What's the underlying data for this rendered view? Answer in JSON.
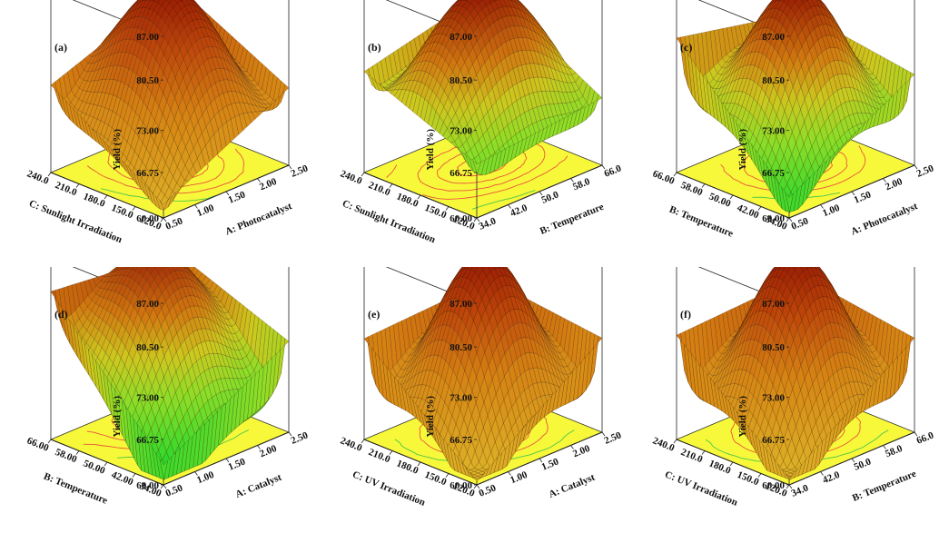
{
  "chart_data": [
    {
      "type": "surface",
      "panel_label": "(a)",
      "zlabel": "Yield  (%)",
      "zticks": [
        "60.00",
        "66.75",
        "73.00",
        "80.50",
        "87.00"
      ],
      "zlim": [
        60,
        87
      ],
      "xlabel": "A: Photocatalyst",
      "xticks": [
        "0.50",
        "1.00",
        "1.50",
        "2.00",
        "2.50"
      ],
      "ylabel": "C: Sunlight Irradiation",
      "yticks": [
        "120.0",
        "150.0",
        "180.0",
        "210.0",
        "240.0"
      ],
      "surface": {
        "peak": 86.5,
        "x_opt": 0.55,
        "y_opt": 0.6,
        "curv_x": 22,
        "curv_y": 10,
        "cross": 0,
        "colormap": "orange"
      },
      "corner_values": {
        "x0y0": 62.0,
        "x1y0": 71.5,
        "x0y1": 73.0,
        "x1y1": 80.0
      }
    },
    {
      "type": "surface",
      "panel_label": "(b)",
      "zlabel": "Yield  (%)",
      "zticks": [
        "60.00",
        "66.75",
        "73.00",
        "80.50",
        "87.00"
      ],
      "zlim": [
        60,
        87
      ],
      "xlabel": "B: Temperature",
      "xticks": [
        "34.0",
        "42.0",
        "50.0",
        "58.0",
        "66.0"
      ],
      "ylabel": "C: Sunlight Irradiation",
      "yticks": [
        "120.0",
        "150.0",
        "180.0",
        "210.0",
        "240.0"
      ],
      "surface": {
        "peak": 86.5,
        "x_opt": 0.55,
        "y_opt": 0.55,
        "curv_x": 8,
        "curv_y": 22,
        "cross": 0,
        "colormap": "green-red"
      },
      "corner_values": {
        "x0y0": 68.0,
        "x1y0": 70.0,
        "x0y1": 75.0,
        "x1y1": 79.5
      }
    },
    {
      "type": "surface",
      "panel_label": "(c)",
      "zlabel": "Yield  (%)",
      "zticks": [
        "60.00",
        "66.75",
        "73.00",
        "80.50",
        "87.00"
      ],
      "zlim": [
        60,
        87
      ],
      "xlabel": "A: Photocatalyst",
      "xticks": [
        "0.50",
        "1.00",
        "1.50",
        "2.00",
        "2.50"
      ],
      "ylabel": "B: Temperature",
      "yticks": [
        "34.00",
        "42.00",
        "50.00",
        "58.00",
        "66.00"
      ],
      "surface": {
        "peak": 86.5,
        "x_opt": 0.55,
        "y_opt": 0.55,
        "curv_x": 22,
        "curv_y": 20,
        "cross": 0,
        "colormap": "green-red"
      },
      "corner_values": {
        "x0y0": 63.0,
        "x1y0": 73.5,
        "x0y1": 80.0,
        "x1y1": 76.0
      }
    },
    {
      "type": "surface",
      "panel_label": "(d)",
      "zlabel": "Yield  (%)",
      "zticks": [
        "60.00",
        "66.75",
        "73.00",
        "80.50",
        "87.00"
      ],
      "zlim": [
        60,
        87
      ],
      "xlabel": "A: Catalyst",
      "xticks": [
        "0.50",
        "1.00",
        "1.50",
        "2.00",
        "2.50"
      ],
      "ylabel": "B: Temperature",
      "yticks": [
        "34.00",
        "42.00",
        "50.00",
        "58.00",
        "66.00"
      ],
      "surface": {
        "peak": 86.5,
        "x_opt": 0.6,
        "y_opt": 0.8,
        "curv_x": 18,
        "curv_y": 14,
        "cross": 0,
        "colormap": "green-red"
      },
      "corner_values": {
        "x0y0": 63.0,
        "x1y0": 73.5,
        "x0y1": 82.0,
        "x1y1": 80.0
      }
    },
    {
      "type": "surface",
      "panel_label": "(e)",
      "zlabel": "Yield  (%)",
      "zticks": [
        "60.00",
        "66.75",
        "73.00",
        "80.50",
        "87.00"
      ],
      "zlim": [
        60,
        87
      ],
      "xlabel": "A: Catalyst",
      "xticks": [
        "0.50",
        "1.00",
        "1.50",
        "2.00",
        "2.50"
      ],
      "ylabel": "C: UV Irradiation",
      "yticks": [
        "120.0",
        "150.0",
        "180.0",
        "210.0",
        "240.0"
      ],
      "surface": {
        "peak": 86.5,
        "x_opt": 0.55,
        "y_opt": 0.55,
        "curv_x": 24,
        "curv_y": 24,
        "cross": 0,
        "colormap": "orange"
      },
      "corner_values": {
        "x0y0": 60.5,
        "x1y0": 74.0,
        "x0y1": 75.0,
        "x1y1": 76.0
      }
    },
    {
      "type": "surface",
      "panel_label": "(f)",
      "zlabel": "Yield  (%)",
      "zticks": [
        "60.00",
        "66.75",
        "73.00",
        "80.50",
        "87.00"
      ],
      "zlim": [
        60,
        87
      ],
      "xlabel": "B: Temperature",
      "xticks": [
        "34.0",
        "42.0",
        "50.0",
        "58.0",
        "66.0"
      ],
      "ylabel": "C: UV Irradiation",
      "yticks": [
        "120.0",
        "150.0",
        "180.0",
        "210.0",
        "240.0"
      ],
      "surface": {
        "peak": 86.5,
        "x_opt": 0.55,
        "y_opt": 0.55,
        "curv_x": 24,
        "curv_y": 24,
        "cross": 0,
        "colormap": "orange"
      },
      "corner_values": {
        "x0y0": 61.0,
        "x1y0": 74.0,
        "x0y1": 75.5,
        "x1y1": 76.5
      }
    }
  ]
}
